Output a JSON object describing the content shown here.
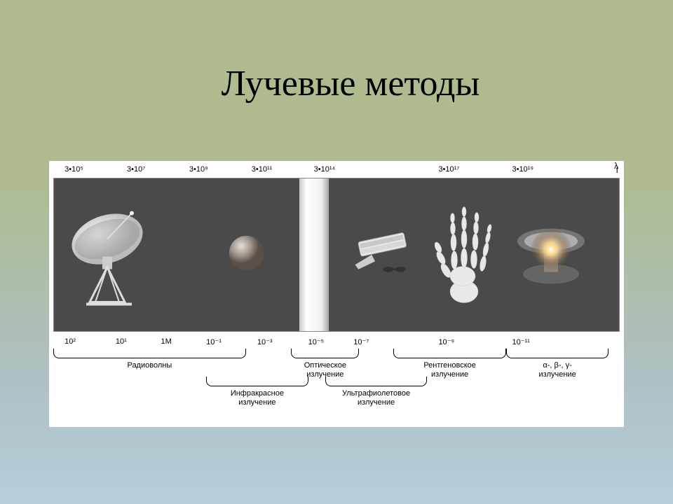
{
  "title": "Лучевые методы",
  "diagram": {
    "background_color": "#ffffff",
    "band_color": "#4a4a4a",
    "text_color": "#000000",
    "frequency_axis": {
      "symbol": "f",
      "ticks": [
        {
          "label": "3•10⁵",
          "pos_pct": 2
        },
        {
          "label": "3•10⁷",
          "pos_pct": 13
        },
        {
          "label": "3•10⁹",
          "pos_pct": 24
        },
        {
          "label": "3•10¹¹",
          "pos_pct": 35
        },
        {
          "label": "3•10¹⁴",
          "pos_pct": 46
        },
        {
          "label": "3•10¹⁷",
          "pos_pct": 68
        },
        {
          "label": "3•10¹⁹",
          "pos_pct": 81
        }
      ]
    },
    "wavelength_axis": {
      "symbol": "λ",
      "ticks": [
        {
          "label": "10²",
          "pos_pct": 2
        },
        {
          "label": "10¹",
          "pos_pct": 11
        },
        {
          "label": "1М",
          "pos_pct": 19
        },
        {
          "label": "10⁻¹",
          "pos_pct": 27
        },
        {
          "label": "10⁻³",
          "pos_pct": 36
        },
        {
          "label": "10⁻⁵",
          "pos_pct": 45
        },
        {
          "label": "10⁻⁷",
          "pos_pct": 53
        },
        {
          "label": "10⁻⁹",
          "pos_pct": 68
        },
        {
          "label": "10⁻¹¹",
          "pos_pct": 81
        }
      ]
    },
    "bands": [
      {
        "label": "Радиоволны",
        "start_pct": 0,
        "end_pct": 34,
        "row": "upper"
      },
      {
        "label": "Инфракрасное излучение",
        "start_pct": 27,
        "end_pct": 45,
        "row": "lower"
      },
      {
        "label": "Оптическое излучение",
        "start_pct": 42,
        "end_pct": 54,
        "row": "upper"
      },
      {
        "label": "Ультрафиолетовое излучение",
        "start_pct": 48,
        "end_pct": 66,
        "row": "lower"
      },
      {
        "label": "Рентгеновское излучение",
        "start_pct": 60,
        "end_pct": 80,
        "row": "upper"
      },
      {
        "label": "α-, β-, γ- излучение",
        "start_pct": 80,
        "end_pct": 98,
        "row": "upper"
      }
    ],
    "icons": [
      {
        "name": "radio-telescope",
        "pos_pct": 10,
        "width": 120
      },
      {
        "name": "infrared-sphere",
        "pos_pct": 34,
        "width": 55
      },
      {
        "name": "optical-column",
        "pos_pct": 46,
        "width": 46
      },
      {
        "name": "uv-lamp",
        "pos_pct": 58,
        "width": 95
      },
      {
        "name": "xray-hand",
        "pos_pct": 73,
        "width": 90
      },
      {
        "name": "nuclear-cloud",
        "pos_pct": 88,
        "width": 110
      }
    ]
  }
}
